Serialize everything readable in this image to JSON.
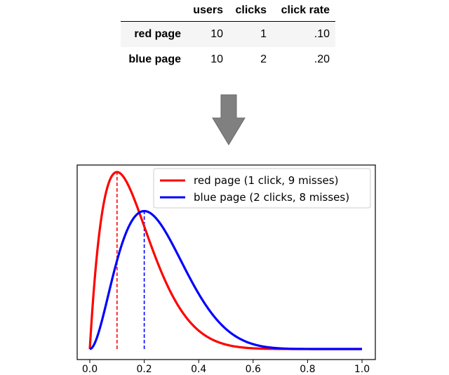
{
  "table": {
    "headers": [
      "",
      "users",
      "clicks",
      "click rate"
    ],
    "rows": [
      {
        "label": "red page",
        "users": "10",
        "clicks": "1",
        "rate": ".10"
      },
      {
        "label": "blue page",
        "users": "10",
        "clicks": "2",
        "rate": ".20"
      }
    ]
  },
  "arrow": {
    "icon": "down-arrow-icon",
    "color": "#808080"
  },
  "chart_data": {
    "type": "line",
    "xlim": [
      0.0,
      1.0
    ],
    "x_ticks": [
      "0.0",
      "0.2",
      "0.4",
      "0.6",
      "0.8",
      "1.0"
    ],
    "y_ticks_shown": false,
    "legend_position": "top-right",
    "series": [
      {
        "name": "red page (1 click, 9 misses)",
        "color": "#ff0000",
        "distribution": "beta",
        "alpha": 2,
        "beta": 10,
        "mean_marker_x": 0.1
      },
      {
        "name": "blue page (2 clicks, 8 misses)",
        "color": "#0000ff",
        "distribution": "beta",
        "alpha": 3,
        "beta": 9,
        "mean_marker_x": 0.2
      }
    ]
  }
}
